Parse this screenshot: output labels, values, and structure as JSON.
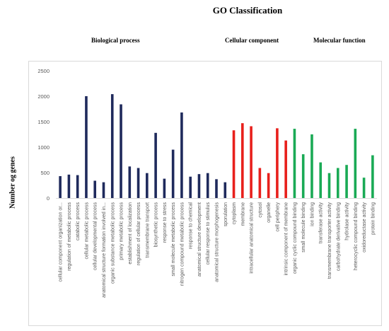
{
  "title": "GO Classification",
  "ylabel": "Number og genes",
  "groups": {
    "bio": "Biological process",
    "cell": "Cellular component",
    "mol": "Molecular function"
  },
  "chart_data": {
    "type": "bar",
    "title": "GO Classification",
    "ylabel": "Number og genes",
    "xlabel": "",
    "ylim": [
      0,
      2500
    ],
    "yticks": [
      0,
      500,
      1000,
      1500,
      2000,
      2500
    ],
    "grid": false,
    "colors": {
      "Biological process": "#1f2a5c",
      "Cellular component": "#e8201c",
      "Molecular function": "#1aaa55"
    },
    "categories": [
      {
        "label": "cellular component organization or...",
        "value": 430,
        "group": "Biological process"
      },
      {
        "label": "regulation of metabolic process",
        "value": 460,
        "group": "Biological process"
      },
      {
        "label": "catabolic process",
        "value": 450,
        "group": "Biological process"
      },
      {
        "label": "cellular metabolic process",
        "value": 2000,
        "group": "Biological process"
      },
      {
        "label": "cellular developmental process",
        "value": 340,
        "group": "Biological process"
      },
      {
        "label": "anatomical structure formation involved in...",
        "value": 310,
        "group": "Biological process"
      },
      {
        "label": "organic substance metabolic process",
        "value": 2040,
        "group": "Biological process"
      },
      {
        "label": "primary metabolic process",
        "value": 1840,
        "group": "Biological process"
      },
      {
        "label": "establishment of localization",
        "value": 620,
        "group": "Biological process"
      },
      {
        "label": "regulation of cellular process",
        "value": 590,
        "group": "Biological process"
      },
      {
        "label": "transmembrane transport",
        "value": 490,
        "group": "Biological process"
      },
      {
        "label": "biosynthetic process",
        "value": 1280,
        "group": "Biological process"
      },
      {
        "label": "response to stress",
        "value": 380,
        "group": "Biological process"
      },
      {
        "label": "small molecule metabolic process",
        "value": 950,
        "group": "Biological process"
      },
      {
        "label": "nitrogen compound metabolic process",
        "value": 1680,
        "group": "Biological process"
      },
      {
        "label": "response to chemical",
        "value": 420,
        "group": "Biological process"
      },
      {
        "label": "anatomical structure development",
        "value": 470,
        "group": "Biological process"
      },
      {
        "label": "cellular response to stimulus",
        "value": 490,
        "group": "Biological process"
      },
      {
        "label": "anatomical structure morphogenesis",
        "value": 370,
        "group": "Biological process"
      },
      {
        "label": "sporulation",
        "value": 310,
        "group": "Biological process"
      },
      {
        "label": "cytoplasm",
        "value": 1330,
        "group": "Cellular component"
      },
      {
        "label": "membrane",
        "value": 1470,
        "group": "Cellular component"
      },
      {
        "label": "intracellular anatomical structure",
        "value": 1410,
        "group": "Cellular component"
      },
      {
        "label": "cytosol",
        "value": 590,
        "group": "Cellular component"
      },
      {
        "label": "organelle",
        "value": 490,
        "group": "Cellular component"
      },
      {
        "label": "cell periphery",
        "value": 1370,
        "group": "Cellular component"
      },
      {
        "label": "intrinsic component of membrane",
        "value": 1130,
        "group": "Cellular component"
      },
      {
        "label": "organic cyclic compound binding",
        "value": 1360,
        "group": "Molecular function"
      },
      {
        "label": "small molecule binding",
        "value": 860,
        "group": "Molecular function"
      },
      {
        "label": "ion binding",
        "value": 1250,
        "group": "Molecular function"
      },
      {
        "label": "transferase activity",
        "value": 700,
        "group": "Molecular function"
      },
      {
        "label": "transmembrane transporter activity",
        "value": 490,
        "group": "Molecular function"
      },
      {
        "label": "carbohydrate derivative binding",
        "value": 590,
        "group": "Molecular function"
      },
      {
        "label": "hydrolase activity",
        "value": 650,
        "group": "Molecular function"
      },
      {
        "label": "heterocyclic compound binding",
        "value": 1360,
        "group": "Molecular function"
      },
      {
        "label": "oxidoreductase activity",
        "value": 400,
        "group": "Molecular function"
      },
      {
        "label": "protein binding",
        "value": 840,
        "group": "Molecular function"
      }
    ]
  }
}
